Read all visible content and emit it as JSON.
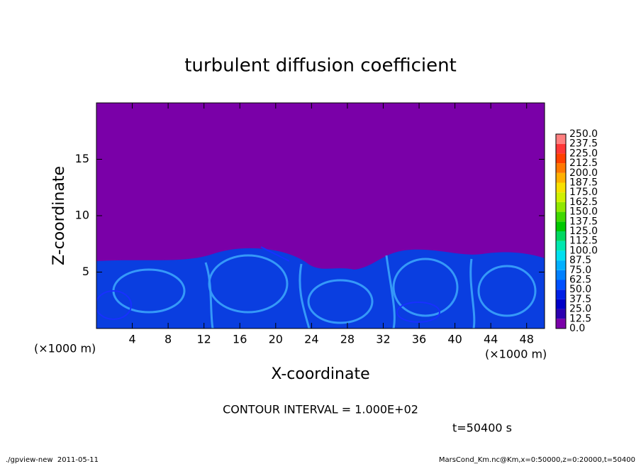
{
  "chart_data": {
    "type": "contour",
    "title": "turbulent diffusion coefficient",
    "x_label": "X-coordinate",
    "y_label": "Z-coordinate",
    "x_unit": "(×1000 m)",
    "y_unit": "(×1000 m)",
    "xlim": [
      0,
      50
    ],
    "ylim": [
      0,
      20
    ],
    "xticks": [
      4,
      8,
      12,
      16,
      20,
      24,
      28,
      32,
      36,
      40,
      44,
      48
    ],
    "yticks": [
      5,
      10,
      15
    ],
    "colorbar": {
      "ticks": [
        {
          "value": 0,
          "label": "0.0"
        },
        12.5,
        {
          "value": 25,
          "label": "25.0"
        },
        37.5,
        {
          "value": 50,
          "label": "50.0"
        },
        62.5,
        {
          "value": 75,
          "label": "75.0"
        },
        87.5,
        {
          "value": 100,
          "label": "100.0"
        },
        112.5,
        {
          "value": 125,
          "label": "125.0"
        },
        137.5,
        {
          "value": 150,
          "label": "150.0"
        },
        162.5,
        {
          "value": 175,
          "label": "175.0"
        },
        187.5,
        {
          "value": 200,
          "label": "200.0"
        },
        212.5,
        {
          "value": 225,
          "label": "225.0"
        },
        237.5,
        {
          "value": 250,
          "label": "250.0"
        }
      ],
      "colors": [
        "#7a00a8",
        "#2c00b0",
        "#0000c8",
        "#0020e6",
        "#0050ff",
        "#0080ff",
        "#00b0ff",
        "#00e0f0",
        "#00e8b0",
        "#00d860",
        "#00c800",
        "#40d800",
        "#90e800",
        "#d0f000",
        "#f8e000",
        "#ffb000",
        "#ff7800",
        "#ff4000",
        "#ff3838",
        "#ff8080"
      ]
    },
    "annotations": {
      "contour_interval": "CONTOUR INTERVAL = 1.000E+02",
      "time": "t=50400 s"
    },
    "footer": {
      "left": "./gpview-new  2011-05-11",
      "right": "MarsCond_Km.nc@Km,x=0:50000,z=0:20000,t=50400"
    }
  }
}
